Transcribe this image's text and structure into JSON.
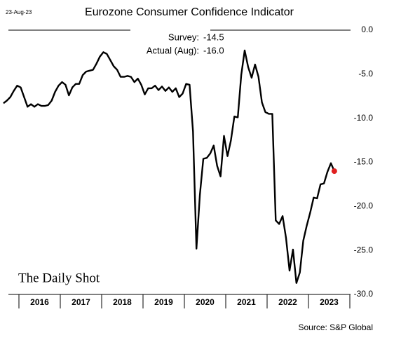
{
  "chart_data": {
    "type": "line",
    "title": "Eurozone Consumer Confidence Indicator",
    "date": "23-Aug-23",
    "source": "Source: S&P Global",
    "logo": "The Daily Shot",
    "annotations": [
      {
        "label": "Survey:",
        "text": "-14.5"
      },
      {
        "label": "Actual (Aug):",
        "text": "-16.0"
      }
    ],
    "categories": [
      "2016",
      "2017",
      "2018",
      "2019",
      "2020",
      "2021",
      "2022",
      "2023"
    ],
    "x": [
      "2015",
      "2015",
      "2015",
      "2015",
      "2015",
      "2016",
      "2016",
      "2016",
      "2016",
      "2016",
      "2016",
      "2016",
      "2016",
      "2016",
      "2016",
      "2016",
      "2016",
      "2017",
      "2017",
      "2017",
      "2017",
      "2017",
      "2017",
      "2017",
      "2017",
      "2017",
      "2017",
      "2017",
      "2017",
      "2018",
      "2018",
      "2018",
      "2018",
      "2018",
      "2018",
      "2018",
      "2018",
      "2018",
      "2018",
      "2018",
      "2018",
      "2019",
      "2019",
      "2019",
      "2019",
      "2019",
      "2019",
      "2019",
      "2019",
      "2019",
      "2019",
      "2019",
      "2019",
      "2020",
      "2020",
      "2020",
      "2020",
      "2020",
      "2020",
      "2020",
      "2020",
      "2020",
      "2020",
      "2020",
      "2020",
      "2021",
      "2021",
      "2021",
      "2021",
      "2021",
      "2021",
      "2021",
      "2021",
      "2021",
      "2021",
      "2021",
      "2021",
      "2022",
      "2022",
      "2022",
      "2022",
      "2022",
      "2022",
      "2022",
      "2022",
      "2022",
      "2022",
      "2022",
      "2022",
      "2023",
      "2023",
      "2023",
      "2023",
      "2023",
      "2023",
      "2023",
      "2023"
    ],
    "series": [
      {
        "name": "Consumer Confidence",
        "color": "#000000",
        "highlight_color": "#e02020",
        "values": [
          -8.3,
          -8.0,
          -7.6,
          -6.9,
          -6.3,
          -6.5,
          -7.6,
          -8.7,
          -8.4,
          -8.7,
          -8.4,
          -8.6,
          -8.6,
          -8.5,
          -8.0,
          -7.0,
          -6.3,
          -5.9,
          -6.2,
          -7.4,
          -6.5,
          -6.1,
          -6.1,
          -5.1,
          -4.7,
          -4.6,
          -4.5,
          -3.8,
          -3.0,
          -2.5,
          -2.7,
          -3.4,
          -4.1,
          -4.5,
          -5.3,
          -5.3,
          -5.2,
          -5.3,
          -5.9,
          -5.5,
          -6.2,
          -7.3,
          -6.6,
          -6.6,
          -6.3,
          -6.8,
          -6.4,
          -6.9,
          -6.5,
          -7.0,
          -6.6,
          -7.6,
          -7.2,
          -6.1,
          -6.2,
          -11.5,
          -24.8,
          -18.7,
          -14.6,
          -14.5,
          -14.0,
          -13.1,
          -15.4,
          -16.6,
          -12.0,
          -14.3,
          -12.5,
          -9.8,
          -9.9,
          -5.1,
          -2.3,
          -4.2,
          -5.4,
          -3.9,
          -5.3,
          -8.2,
          -9.3,
          -9.5,
          -9.5,
          -21.6,
          -22.0,
          -21.1,
          -23.6,
          -27.3,
          -24.9,
          -28.7,
          -27.5,
          -23.9,
          -22.2,
          -20.7,
          -19.0,
          -19.1,
          -17.5,
          -17.4,
          -16.1,
          -15.1,
          -16.0
        ]
      }
    ],
    "ylim": [
      -30,
      0
    ],
    "yticks": [
      {
        "value": 0,
        "label": "0.0"
      },
      {
        "value": -5,
        "label": "-5.0"
      },
      {
        "value": -10,
        "label": "-10.0"
      },
      {
        "value": -15,
        "label": "-15.0"
      },
      {
        "value": -20,
        "label": "-20.0"
      },
      {
        "value": -25,
        "label": "-25.0"
      },
      {
        "value": -30,
        "label": "-30.0"
      }
    ]
  }
}
